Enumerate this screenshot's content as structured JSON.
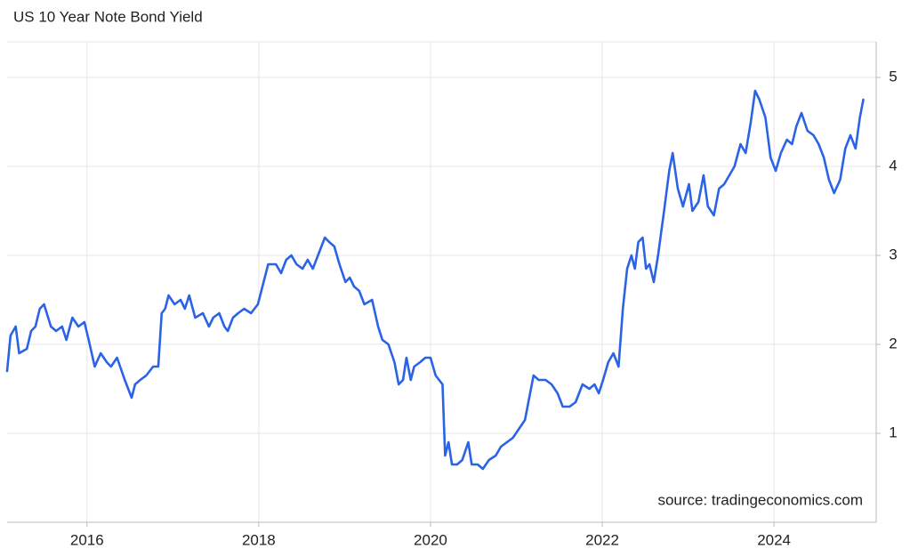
{
  "chart_data": {
    "type": "line",
    "title": "US 10 Year Note Bond Yield",
    "source": "source: tradingeconomics.com",
    "color": "#2b63e6",
    "grid": true,
    "xlim": [
      2015.07,
      2025.19
    ],
    "xticks": [
      2016,
      2018,
      2020,
      2022,
      2024
    ],
    "ylim": [
      0,
      5.4
    ],
    "yticks": [
      1,
      2,
      3,
      4,
      5
    ],
    "x": [
      2015.07,
      2015.11,
      2015.17,
      2015.21,
      2015.3,
      2015.35,
      2015.4,
      2015.45,
      2015.5,
      2015.58,
      2015.64,
      2015.71,
      2015.76,
      2015.83,
      2015.9,
      2015.97,
      2016.02,
      2016.09,
      2016.16,
      2016.23,
      2016.28,
      2016.35,
      2016.44,
      2016.52,
      2016.56,
      2016.62,
      2016.69,
      2016.77,
      2016.83,
      2016.87,
      2016.91,
      2016.95,
      2017.02,
      2017.09,
      2017.14,
      2017.19,
      2017.26,
      2017.35,
      2017.42,
      2017.47,
      2017.54,
      2017.6,
      2017.64,
      2017.7,
      2017.76,
      2017.83,
      2017.91,
      2017.99,
      2018.07,
      2018.11,
      2018.2,
      2018.26,
      2018.32,
      2018.38,
      2018.44,
      2018.51,
      2018.57,
      2018.63,
      2018.69,
      2018.77,
      2018.82,
      2018.88,
      2018.94,
      2019.01,
      2019.06,
      2019.11,
      2019.17,
      2019.23,
      2019.32,
      2019.39,
      2019.44,
      2019.51,
      2019.58,
      2019.63,
      2019.68,
      2019.72,
      2019.77,
      2019.81,
      2019.88,
      2019.94,
      2020.0,
      2020.06,
      2020.14,
      2020.17,
      2020.21,
      2020.25,
      2020.31,
      2020.37,
      2020.44,
      2020.48,
      2020.55,
      2020.61,
      2020.68,
      2020.76,
      2020.82,
      2020.89,
      2020.96,
      2021.03,
      2021.1,
      2021.15,
      2021.2,
      2021.26,
      2021.34,
      2021.41,
      2021.48,
      2021.54,
      2021.62,
      2021.69,
      2021.77,
      2021.85,
      2021.91,
      2021.96,
      2022.01,
      2022.07,
      2022.13,
      2022.19,
      2022.24,
      2022.29,
      2022.34,
      2022.38,
      2022.42,
      2022.47,
      2022.51,
      2022.55,
      2022.6,
      2022.65,
      2022.72,
      2022.78,
      2022.82,
      2022.88,
      2022.94,
      2023.01,
      2023.05,
      2023.12,
      2023.18,
      2023.23,
      2023.3,
      2023.36,
      2023.42,
      2023.48,
      2023.54,
      2023.61,
      2023.67,
      2023.73,
      2023.78,
      2023.83,
      2023.9,
      2023.96,
      2024.02,
      2024.08,
      2024.15,
      2024.21,
      2024.26,
      2024.32,
      2024.39,
      2024.46,
      2024.52,
      2024.58,
      2024.64,
      2024.7,
      2024.77,
      2024.83,
      2024.89,
      2024.95,
      2025.0,
      2025.04
    ],
    "values": [
      1.7,
      2.1,
      2.2,
      1.9,
      1.95,
      2.15,
      2.2,
      2.4,
      2.45,
      2.2,
      2.15,
      2.2,
      2.05,
      2.3,
      2.2,
      2.25,
      2.05,
      1.75,
      1.9,
      1.8,
      1.75,
      1.85,
      1.6,
      1.4,
      1.55,
      1.6,
      1.65,
      1.75,
      1.75,
      2.35,
      2.4,
      2.55,
      2.45,
      2.5,
      2.4,
      2.55,
      2.3,
      2.35,
      2.2,
      2.3,
      2.35,
      2.2,
      2.15,
      2.3,
      2.35,
      2.4,
      2.35,
      2.45,
      2.75,
      2.9,
      2.9,
      2.8,
      2.95,
      3.0,
      2.9,
      2.85,
      2.95,
      2.85,
      3.0,
      3.2,
      3.15,
      3.1,
      2.9,
      2.7,
      2.75,
      2.65,
      2.6,
      2.45,
      2.5,
      2.2,
      2.05,
      2.0,
      1.8,
      1.55,
      1.6,
      1.85,
      1.6,
      1.75,
      1.8,
      1.85,
      1.85,
      1.65,
      1.55,
      0.75,
      0.9,
      0.65,
      0.65,
      0.7,
      0.9,
      0.65,
      0.65,
      0.6,
      0.7,
      0.75,
      0.85,
      0.9,
      0.95,
      1.05,
      1.15,
      1.4,
      1.65,
      1.6,
      1.6,
      1.55,
      1.45,
      1.3,
      1.3,
      1.35,
      1.55,
      1.5,
      1.55,
      1.45,
      1.6,
      1.8,
      1.9,
      1.75,
      2.4,
      2.85,
      3.0,
      2.85,
      3.15,
      3.2,
      2.85,
      2.9,
      2.7,
      3.0,
      3.5,
      3.95,
      4.15,
      3.75,
      3.55,
      3.8,
      3.5,
      3.6,
      3.9,
      3.55,
      3.45,
      3.75,
      3.8,
      3.9,
      4.0,
      4.25,
      4.15,
      4.5,
      4.85,
      4.75,
      4.55,
      4.1,
      3.95,
      4.15,
      4.3,
      4.25,
      4.45,
      4.6,
      4.4,
      4.35,
      4.25,
      4.1,
      3.85,
      3.7,
      3.85,
      4.2,
      4.35,
      4.2,
      4.55,
      4.75
    ]
  }
}
